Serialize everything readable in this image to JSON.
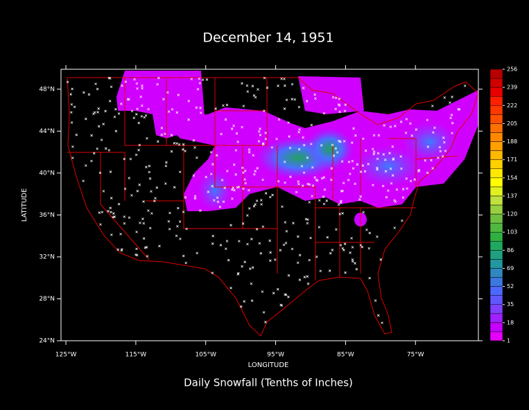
{
  "chart_data": {
    "type": "map",
    "title": "December 14, 1951",
    "x_label": "LONGITUDE",
    "y_label": "LATITUDE",
    "caption": "Daily Snowfall (Tenths of Inches)",
    "xlim": [
      -125.7,
      -66
    ],
    "ylim": [
      24,
      49.9
    ],
    "xticks": [
      {
        "value": -125,
        "label": "125°W"
      },
      {
        "value": -115,
        "label": "115°W"
      },
      {
        "value": -105,
        "label": "105°W"
      },
      {
        "value": -95,
        "label": "95°W"
      },
      {
        "value": -85,
        "label": "85°W"
      },
      {
        "value": -75,
        "label": "75°W"
      }
    ],
    "yticks": [
      {
        "value": 24,
        "label": "24°N"
      },
      {
        "value": 28,
        "label": "28°N"
      },
      {
        "value": 32,
        "label": "32°N"
      },
      {
        "value": 36,
        "label": "36°N"
      },
      {
        "value": 40,
        "label": "40°N"
      },
      {
        "value": 44,
        "label": "44°N"
      },
      {
        "value": 48,
        "label": "48°N"
      }
    ],
    "colorbar": {
      "levels": [
        1,
        18,
        35,
        52,
        69,
        86,
        103,
        120,
        137,
        154,
        171,
        188,
        205,
        222,
        239,
        256
      ],
      "colors": [
        "#e800ff",
        "#c800ff",
        "#a020ff",
        "#8040ff",
        "#6058ff",
        "#4c68ff",
        "#3c78e0",
        "#3088c0",
        "#2098a0",
        "#20a080",
        "#20a860",
        "#30b040",
        "#50b840",
        "#70c040",
        "#98d040",
        "#c0e040",
        "#e0f020",
        "#ffff00",
        "#ffe800",
        "#ffd000",
        "#ffb800",
        "#ffa000",
        "#ff8800",
        "#ff7000",
        "#ff5000",
        "#ff3800",
        "#ff2000",
        "#e80000",
        "#d00000",
        "#b80000"
      ]
    }
  }
}
